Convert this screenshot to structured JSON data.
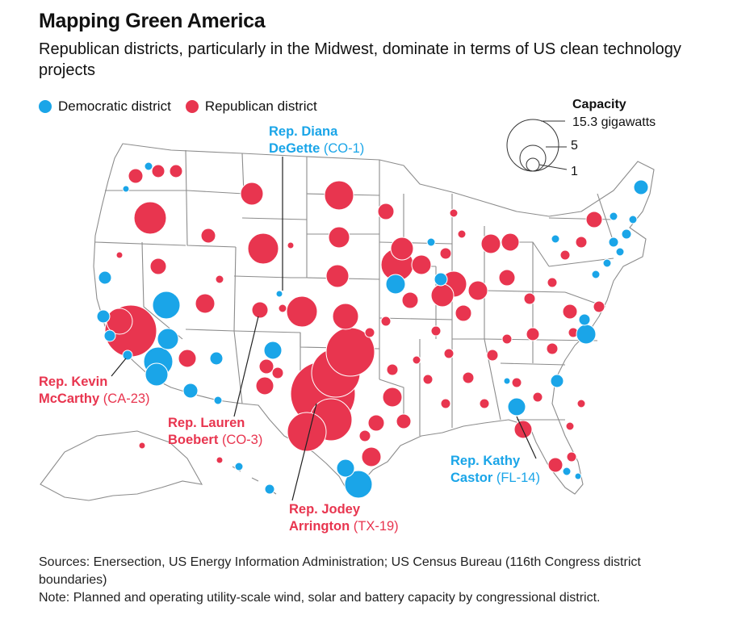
{
  "header": {
    "title": "Mapping Green America",
    "subtitle": "Republican districts, particularly in the Midwest, dominate in terms of US clean technology projects"
  },
  "legend": {
    "dem_label": "Democratic district",
    "rep_label": "Republican district"
  },
  "colors": {
    "democratic": "#1aa5e8",
    "republican": "#e8354f",
    "borders": "#9a9a9a",
    "background": "#ffffff"
  },
  "capacity_legend": {
    "title": "Capacity",
    "large": "15.3 gigawatts",
    "mid": "5",
    "small": "1"
  },
  "callouts": {
    "degette_name_1": "Rep. Diana",
    "degette_name_2": "DeGette",
    "degette_code": "(CO-1)",
    "mccarthy_name_1": "Rep. Kevin",
    "mccarthy_name_2": "McCarthy",
    "mccarthy_code": "(CA-23)",
    "boebert_name_1": "Rep. Lauren",
    "boebert_name_2": "Boebert",
    "boebert_code": "(CO-3)",
    "arrington_name_1": "Rep. Jodey",
    "arrington_name_2": "Arrington",
    "arrington_code": "(TX-19)",
    "castor_name_1": "Rep. Kathy",
    "castor_name_2": "Castor",
    "castor_code": "(FL-14)"
  },
  "footer": {
    "sources": "Sources: Enersection, US Energy Information Administration; US Census Bureau (116th Congress district boundaries)",
    "note": "Note: Planned and operating utility-scale wind, solar and battery capacity by congressional district."
  }
}
